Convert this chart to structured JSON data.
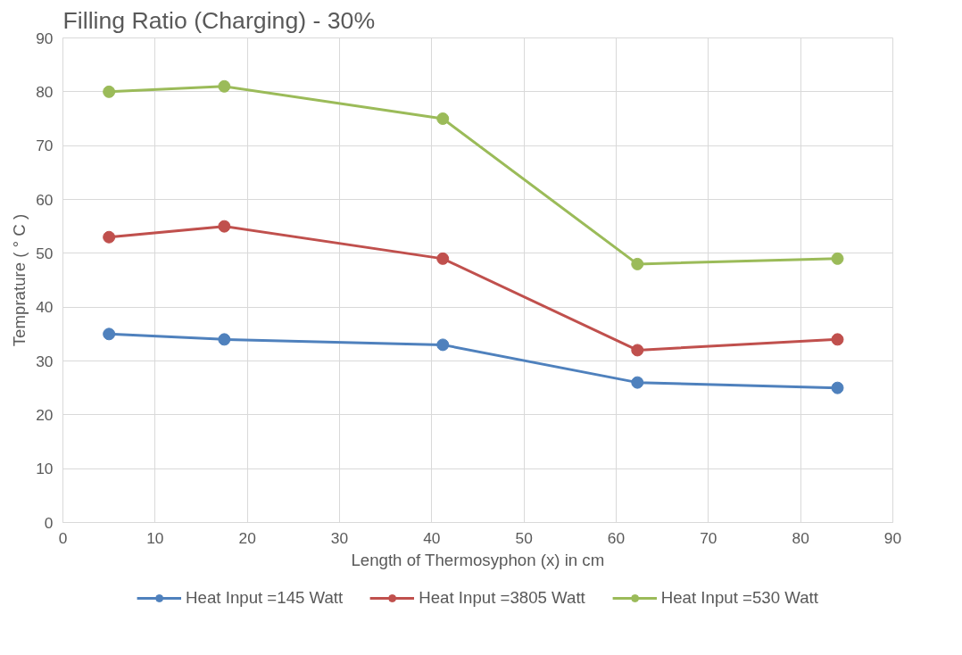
{
  "chart_data": {
    "type": "line",
    "title": "Filling Ratio (Charging) - 30%",
    "xlabel": "Length of Thermosyphon (x) in cm",
    "ylabel": "Temprature ( ° C )",
    "x": [
      5.0,
      17.5,
      41.2,
      62.3,
      84.0
    ],
    "series": [
      {
        "name": "Heat Input =145 Watt",
        "color": "#4f81bd",
        "values": [
          35,
          34,
          33,
          26,
          25
        ]
      },
      {
        "name": "Heat Input =3805 Watt",
        "color": "#c0504d",
        "values": [
          53,
          55,
          49,
          32,
          34
        ]
      },
      {
        "name": "Heat Input =530 Watt",
        "color": "#9bbb59",
        "values": [
          80,
          81,
          75,
          48,
          49
        ]
      }
    ],
    "xlim": [
      0,
      90
    ],
    "ylim": [
      0,
      90
    ],
    "xticks": [
      0,
      10,
      20,
      30,
      40,
      50,
      60,
      70,
      80,
      90
    ],
    "yticks": [
      0,
      10,
      20,
      30,
      40,
      50,
      60,
      70,
      80,
      90
    ],
    "grid": true,
    "legend": "bottom",
    "marker": "circle",
    "line_style": "solid"
  }
}
